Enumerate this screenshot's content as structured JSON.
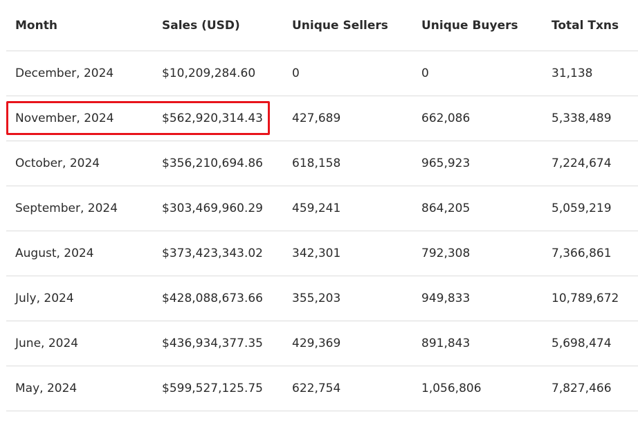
{
  "table": {
    "columns": [
      "Month",
      "Sales (USD)",
      "Unique Sellers",
      "Unique Buyers",
      "Total Txns"
    ],
    "rows": [
      [
        "December, 2024",
        "$10,209,284.60",
        "0",
        "0",
        "31,138"
      ],
      [
        "November, 2024",
        "$562,920,314.43",
        "427,689",
        "662,086",
        "5,338,489"
      ],
      [
        "October, 2024",
        "$356,210,694.86",
        "618,158",
        "965,923",
        "7,224,674"
      ],
      [
        "September, 2024",
        "$303,469,960.29",
        "459,241",
        "864,205",
        "5,059,219"
      ],
      [
        "August, 2024",
        "$373,423,343.02",
        "342,301",
        "792,308",
        "7,366,861"
      ],
      [
        "July, 2024",
        "$428,088,673.66",
        "355,203",
        "949,833",
        "10,789,672"
      ],
      [
        "June, 2024",
        "$436,934,377.35",
        "429,369",
        "891,843",
        "5,698,474"
      ],
      [
        "May, 2024",
        "$599,527,125.75",
        "622,754",
        "1,056,806",
        "7,827,466"
      ]
    ]
  },
  "highlight": {
    "row_index": 1,
    "columns_covered": [
      "Month",
      "Sales (USD)"
    ],
    "color": "#e8141b"
  }
}
